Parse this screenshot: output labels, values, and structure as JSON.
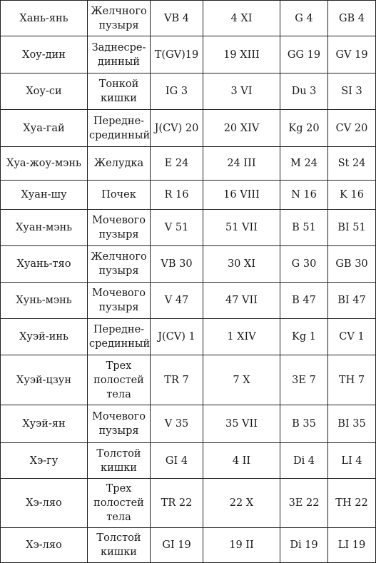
{
  "rows": [
    {
      "name": "Хань-янь",
      "meridian": [
        "Желчного",
        "пузыря"
      ],
      "c1": "VB 4",
      "c2": "4 XI",
      "c3": "G 4",
      "c4": "GB 4"
    },
    {
      "name": "Хоу-дин",
      "meridian": [
        "Заднесре-",
        "динный"
      ],
      "c1": "T(GV)19",
      "c2": "19 XIII",
      "c3": "GG 19",
      "c4": "GV 19"
    },
    {
      "name": "Хоу-си",
      "meridian": [
        "Тонкой",
        "кишки"
      ],
      "c1": "IG 3",
      "c2": "3 VI",
      "c3": "Du 3",
      "c4": "SI 3"
    },
    {
      "name": "Хуа-гай",
      "meridian": [
        "Передне-",
        "срединный"
      ],
      "c1": "J(CV) 20",
      "c2": "20 XIV",
      "c3": "Kg 20",
      "c4": "CV 20"
    },
    {
      "name": "Хуа-жоу-мэнь",
      "meridian": [
        "Желудка"
      ],
      "c1": "E 24",
      "c2": "24 III",
      "c3": "M 24",
      "c4": "St 24"
    },
    {
      "name": "Хуан-шу",
      "meridian": [
        "Почек"
      ],
      "c1": "R 16",
      "c2": "16 VIII",
      "c3": "N 16",
      "c4": "K 16"
    },
    {
      "name": "Хуан-мэнь",
      "meridian": [
        "Мочевого",
        "пузыря"
      ],
      "c1": "V 51",
      "c2": "51 VII",
      "c3": "B 51",
      "c4": "BI 51"
    },
    {
      "name": "Хуань-тяо",
      "meridian": [
        "Желчного",
        "пузыря"
      ],
      "c1": "VB 30",
      "c2": "30 XI",
      "c3": "G 30",
      "c4": "GB 30"
    },
    {
      "name": "Хунь-мэнь",
      "meridian": [
        "Мочевого",
        "пузыря"
      ],
      "c1": "V 47",
      "c2": "47 VII",
      "c3": "B 47",
      "c4": "BI 47"
    },
    {
      "name": "Хуэй-инь",
      "meridian": [
        "Передне-",
        "срединный"
      ],
      "c1": "J(CV) 1",
      "c2": "1 XIV",
      "c3": "Kg 1",
      "c4": "CV 1"
    },
    {
      "name": "Хуэй-цзун",
      "meridian": [
        "Трех",
        "полостей",
        "тела"
      ],
      "c1": "TR 7",
      "c2": "7 X",
      "c3": "3E 7",
      "c4": "TH 7"
    },
    {
      "name": "Хуэй-ян",
      "meridian": [
        "Мочевого",
        "пузыря"
      ],
      "c1": "V 35",
      "c2": "35 VII",
      "c3": "B 35",
      "c4": "BI 35"
    },
    {
      "name": "Хэ-гу",
      "meridian": [
        "Толстой",
        "кишки"
      ],
      "c1": "GI 4",
      "c2": "4 II",
      "c3": "Di 4",
      "c4": "LI 4"
    },
    {
      "name": "Хэ-ляо",
      "meridian": [
        "Трех",
        "полостей",
        "тела"
      ],
      "c1": "TR 22",
      "c2": "22 X",
      "c3": "3E 22",
      "c4": "TH 22"
    },
    {
      "name": "Хэ-ляо",
      "meridian": [
        "Толстой",
        "кишки"
      ],
      "c1": "GI 19",
      "c2": "19 II",
      "c3": "Di 19",
      "c4": "LI 19"
    }
  ]
}
